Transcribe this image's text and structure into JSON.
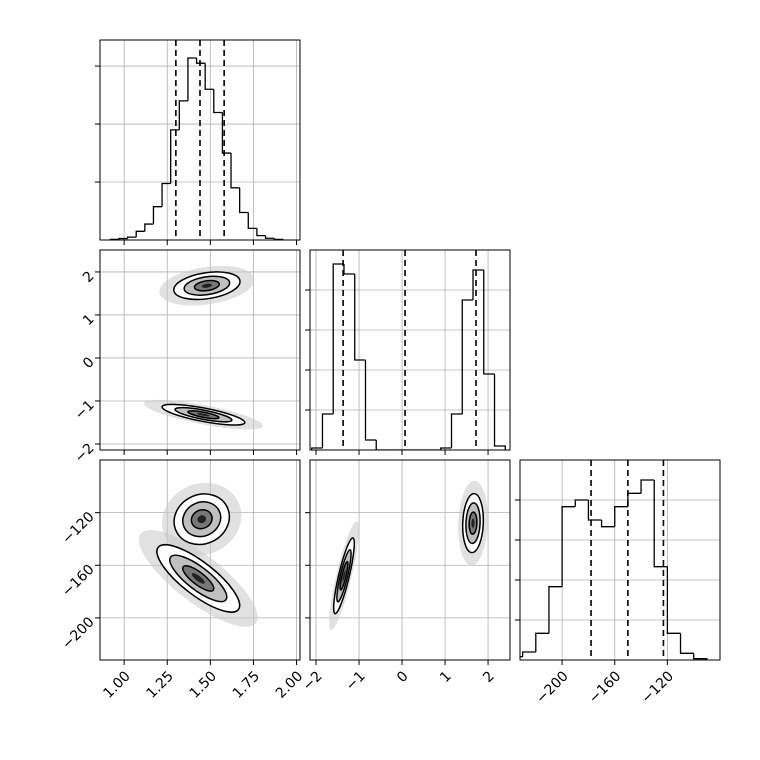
{
  "chart_data": [
    {
      "type": "histogram",
      "bins": [
        0.92,
        0.97,
        1.02,
        1.07,
        1.12,
        1.17,
        1.22,
        1.27,
        1.32,
        1.37,
        1.42,
        1.47,
        1.52,
        1.57,
        1.62,
        1.67,
        1.72,
        1.77,
        1.82,
        1.87,
        1.92
      ],
      "values": [
        2,
        5,
        10,
        30,
        55,
        115,
        195,
        380,
        480,
        628,
        610,
        520,
        440,
        300,
        180,
        95,
        40,
        15,
        6,
        2
      ],
      "quantiles": [
        1.3,
        1.44,
        1.58
      ],
      "xlim": [
        0.86,
        2.02
      ],
      "xticks": [
        1,
        1.25,
        1.5,
        1.75,
        2
      ],
      "xtick_labels": false,
      "ylim": [
        0,
        690
      ],
      "yticks": [
        200,
        400,
        600
      ],
      "ytick_labels": false,
      "grid": true,
      "color": "#000000"
    },
    {
      "type": "contour",
      "clusters": [
        {
          "x": 1.48,
          "y": 1.68,
          "sx": 0.12,
          "sy": 0.2,
          "rho": 0.3
        },
        {
          "x": 1.46,
          "y": -1.32,
          "sx": 0.15,
          "sy": 0.15,
          "rho": -0.75
        }
      ],
      "xlim": [
        0.86,
        2.02
      ],
      "xticks": [
        1,
        1.25,
        1.5,
        1.75,
        2
      ],
      "xtick_labels": false,
      "ylim": [
        -2.14,
        2.51
      ],
      "yticks": [
        {
          "value": -2,
          "label": "−2"
        },
        {
          "value": -1,
          "label": "−1"
        },
        0,
        1,
        2
      ],
      "ytick_labels": true,
      "grid": true,
      "color": "#000000"
    },
    {
      "type": "histogram",
      "bins": [
        -2.1,
        -1.85,
        -1.6,
        -1.35,
        -1.1,
        -0.85,
        -0.6,
        -0.35,
        -0.1,
        0.15,
        0.4,
        0.65,
        0.9,
        1.15,
        1.4,
        1.65,
        1.9,
        2.15,
        2.4
      ],
      "values": [
        10,
        180,
        930,
        880,
        450,
        50,
        0,
        0,
        0,
        0,
        0,
        0,
        10,
        180,
        750,
        900,
        380,
        20
      ],
      "quantiles": [
        -1.37,
        0.07,
        1.72
      ],
      "xlim": [
        -2.14,
        2.51
      ],
      "xticks": [
        -2,
        -1,
        0,
        1,
        2
      ],
      "xtick_labels": false,
      "ylim": [
        0,
        1000
      ],
      "yticks": [
        200,
        400,
        600,
        800
      ],
      "ytick_labels": false,
      "grid": true,
      "color": "#000000"
    },
    {
      "type": "contour",
      "clusters": [
        {
          "x": 1.45,
          "y": -125,
          "sx": 0.1,
          "sy": 12,
          "rho": 0.1
        },
        {
          "x": 1.43,
          "y": -170,
          "sx": 0.15,
          "sy": 16,
          "rho": -0.8
        }
      ],
      "xlim": [
        0.86,
        2.02
      ],
      "xticks": [
        {
          "value": 1,
          "label": "1.00"
        },
        {
          "value": 1.25,
          "label": "1.25"
        },
        {
          "value": 1.5,
          "label": "1.50"
        },
        {
          "value": 1.75,
          "label": "1.75"
        },
        {
          "value": 2,
          "label": "2.00"
        }
      ],
      "xtick_labels": true,
      "ylim": [
        -232,
        -80
      ],
      "yticks": [
        {
          "value": -200,
          "label": "−200"
        },
        {
          "value": -160,
          "label": "−160"
        },
        {
          "value": -120,
          "label": "−120"
        }
      ],
      "ytick_labels": true,
      "grid": true,
      "color": "#000000"
    },
    {
      "type": "contour",
      "clusters": [
        {
          "x": -1.35,
          "y": -168,
          "sx": 0.15,
          "sy": 18,
          "rho": 0.85
        },
        {
          "x": 1.65,
          "y": -128,
          "sx": 0.15,
          "sy": 14,
          "rho": 0.1
        }
      ],
      "xlim": [
        -2.14,
        2.51
      ],
      "xticks": [
        {
          "value": -2,
          "label": "−2"
        },
        {
          "value": -1,
          "label": "−1"
        },
        0,
        1,
        2
      ],
      "xtick_labels": true,
      "ylim": [
        -232,
        -80
      ],
      "yticks": [
        -200,
        -160,
        -120
      ],
      "ytick_labels": false,
      "grid": true,
      "color": "#000000"
    },
    {
      "type": "histogram",
      "bins": [
        -250,
        -240,
        -230,
        -220,
        -210,
        -200,
        -190,
        -180,
        -170,
        -160,
        -150,
        -140,
        -130,
        -120,
        -110,
        -100,
        -90
      ],
      "values": [
        2,
        5,
        12,
        40,
        110,
        230,
        240,
        210,
        200,
        230,
        250,
        270,
        140,
        40,
        10,
        2
      ],
      "quantiles": [
        -178,
        -150,
        -123
      ],
      "xlim": [
        -232,
        -80
      ],
      "xticks": [
        {
          "value": -200,
          "label": "−200"
        },
        {
          "value": -160,
          "label": "−160"
        },
        {
          "value": -120,
          "label": "−120"
        }
      ],
      "xtick_labels": true,
      "ylim": [
        0,
        300
      ],
      "yticks": [
        60,
        120,
        180,
        240
      ],
      "ytick_labels": false,
      "grid": true,
      "color": "#000000"
    }
  ]
}
